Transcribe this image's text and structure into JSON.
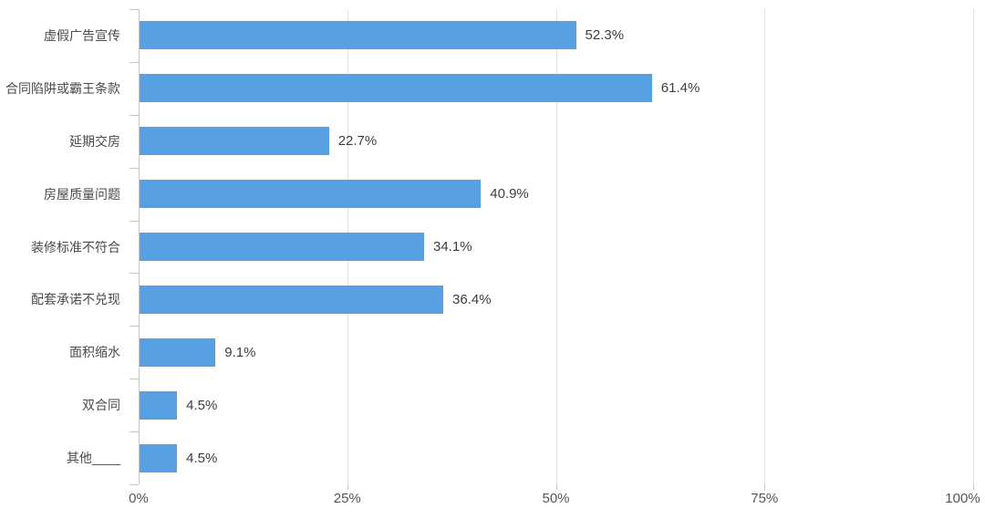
{
  "chart_data": {
    "type": "bar",
    "orientation": "horizontal",
    "title": "",
    "xlabel": "",
    "ylabel": "",
    "categories": [
      "虚假广告宣传",
      "合同陷阱或霸王条款",
      "延期交房",
      "房屋质量问题",
      "装修标准不符合",
      "配套承诺不兑现",
      "面积缩水",
      "双合同",
      "其他____"
    ],
    "values": [
      52.3,
      61.4,
      22.7,
      40.9,
      34.1,
      36.4,
      9.1,
      4.5,
      4.5
    ],
    "value_labels": [
      "52.3%",
      "61.4%",
      "22.7%",
      "40.9%",
      "34.1%",
      "36.4%",
      "9.1%",
      "4.5%",
      "4.5%"
    ],
    "x_ticks": [
      "0%",
      "25%",
      "50%",
      "75%",
      "100%"
    ],
    "x_tick_values": [
      0,
      25,
      50,
      75,
      100
    ],
    "xlim": [
      0,
      100
    ],
    "grid": "vertical-gridlines-on",
    "legend": "none",
    "colors": {
      "bar": "#57A1E2",
      "gridline": "#e3e3e3",
      "axis_line": "#c6c6c6",
      "category_text": "#4a4a4a",
      "value_text": "#3d3d3d",
      "tick_text": "#555555",
      "background": "#ffffff"
    }
  }
}
